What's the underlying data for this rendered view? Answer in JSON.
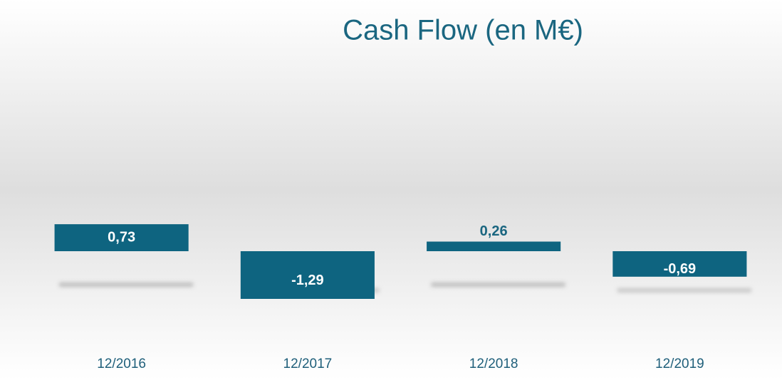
{
  "chart_data": {
    "type": "bar",
    "title": "Cash Flow (en M€)",
    "categories": [
      "12/2016",
      "12/2017",
      "12/2018",
      "12/2019"
    ],
    "values": [
      0.73,
      -1.29,
      0.26,
      -0.69
    ],
    "value_labels": [
      "0,73",
      "-1,29",
      "0,26",
      "-0,69"
    ],
    "color": "#0e6480"
  }
}
